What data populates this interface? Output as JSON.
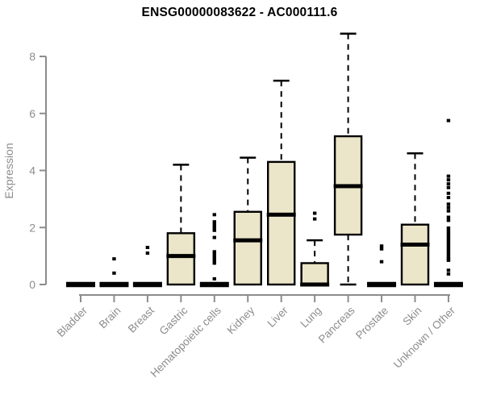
{
  "chart_data": {
    "type": "boxplot",
    "title": "ENSG00000083622 - AC000111.6",
    "ylabel": "Expression",
    "xlabel": "",
    "ylim": [
      0,
      8.8
    ],
    "yticks": [
      0,
      2,
      4,
      6,
      8
    ],
    "grid": false,
    "legend": null,
    "categories": [
      "Bladder",
      "Brain",
      "Breast",
      "Gastric",
      "Hematopoietic cells",
      "Kidney",
      "Liver",
      "Lung",
      "Pancreas",
      "Prostate",
      "Skin",
      "Unknown / Other"
    ],
    "series": [
      {
        "category": "Bladder",
        "q1": 0,
        "median": 0,
        "q3": 0,
        "whisker_low": 0,
        "whisker_high": 0,
        "outliers": []
      },
      {
        "category": "Brain",
        "q1": 0,
        "median": 0,
        "q3": 0,
        "whisker_low": 0,
        "whisker_high": 0,
        "outliers": [
          0.9,
          0.4
        ]
      },
      {
        "category": "Breast",
        "q1": 0,
        "median": 0,
        "q3": 0,
        "whisker_low": 0,
        "whisker_high": 0,
        "outliers": [
          1.3,
          1.1
        ]
      },
      {
        "category": "Gastric",
        "q1": 0,
        "median": 1.0,
        "q3": 1.8,
        "whisker_low": 0,
        "whisker_high": 4.2,
        "outliers": []
      },
      {
        "category": "Hematopoietic cells",
        "q1": 0,
        "median": 0,
        "q3": 0,
        "whisker_low": 0,
        "whisker_high": 0,
        "outliers": [
          2.45,
          2.2,
          2.1,
          2.0,
          1.9,
          1.65,
          1.15,
          1.05,
          0.95,
          0.85,
          0.75,
          0.2
        ]
      },
      {
        "category": "Kidney",
        "q1": 0,
        "median": 1.55,
        "q3": 2.55,
        "whisker_low": 0,
        "whisker_high": 4.45,
        "outliers": []
      },
      {
        "category": "Liver",
        "q1": 0,
        "median": 2.45,
        "q3": 4.3,
        "whisker_low": 0,
        "whisker_high": 7.15,
        "outliers": []
      },
      {
        "category": "Lung",
        "q1": 0,
        "median": 0,
        "q3": 0.75,
        "whisker_low": 0,
        "whisker_high": 1.55,
        "outliers": [
          2.5,
          2.3
        ]
      },
      {
        "category": "Pancreas",
        "q1": 1.75,
        "median": 3.45,
        "q3": 5.2,
        "whisker_low": 0,
        "whisker_high": 8.8,
        "outliers": []
      },
      {
        "category": "Prostate",
        "q1": 0,
        "median": 0,
        "q3": 0,
        "whisker_low": 0,
        "whisker_high": 0,
        "outliers": [
          1.35,
          1.25,
          0.8
        ]
      },
      {
        "category": "Skin",
        "q1": 0,
        "median": 1.4,
        "q3": 2.1,
        "whisker_low": 0,
        "whisker_high": 4.6,
        "outliers": []
      },
      {
        "category": "Unknown / Other",
        "q1": 0,
        "median": 0,
        "q3": 0,
        "whisker_low": 0,
        "whisker_high": 0,
        "outliers": [
          5.75,
          3.8,
          3.67,
          3.53,
          3.4,
          3.2,
          3.05,
          2.82,
          2.7,
          2.58,
          2.36,
          2.25,
          1.98,
          1.88,
          1.78,
          1.68,
          1.58,
          1.48,
          1.38,
          1.28,
          1.18,
          1.08,
          0.98,
          0.9,
          0.85,
          0.5,
          0.37
        ]
      }
    ],
    "colors": {
      "box_fill": "#EBE5C9",
      "box_border": "#000000",
      "median": "#000000",
      "whisker": "#000000",
      "outlier": "#000000",
      "axis": "#8c8c8c",
      "tick_label": "#8c8c8c",
      "title": "#000000"
    }
  }
}
